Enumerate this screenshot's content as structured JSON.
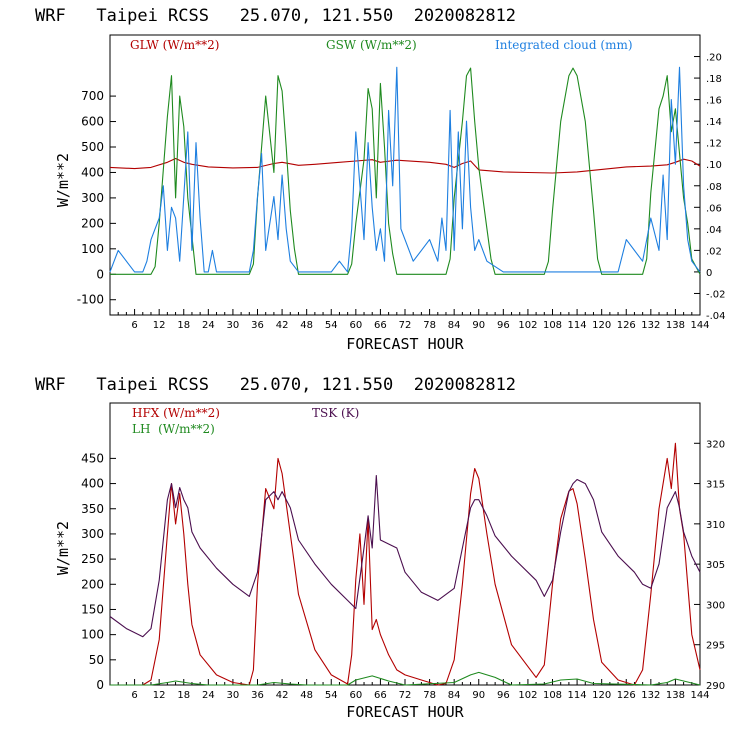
{
  "chart_data": [
    {
      "type": "line",
      "title": "WRF   Taipei RCSS   25.070, 121.550  2020082812",
      "xlabel": "FORECAST HOUR",
      "ylabel": "W/m**2",
      "xlim": [
        0,
        144
      ],
      "ylim": [
        -160,
        940
      ],
      "y2lim": [
        -0.04,
        0.22
      ],
      "xticks": [
        "6",
        "12",
        "18",
        "24",
        "30",
        "36",
        "42",
        "48",
        "54",
        "60",
        "66",
        "72",
        "78",
        "84",
        "90",
        "96",
        "102",
        "108",
        "114",
        "120",
        "126",
        "132",
        "138",
        "144"
      ],
      "yticks": [
        "-100",
        "0",
        "100",
        "200",
        "300",
        "400",
        "500",
        "600",
        "700"
      ],
      "y2ticks": [
        "-.04",
        "-.02",
        "0",
        ".02",
        ".04",
        ".06",
        ".08",
        ".10",
        ".12",
        ".14",
        ".16",
        ".18",
        ".20"
      ],
      "legend": [
        {
          "label": "GLW (W/m**2)",
          "color": "#b30000"
        },
        {
          "label": "GSW (W/m**2)",
          "color": "#1f8a1f"
        },
        {
          "label": "Integrated cloud (mm)",
          "color": "#1e7fe0"
        }
      ],
      "series": [
        {
          "name": "GLW (W/m**2)",
          "color": "#b30000",
          "axis": "left",
          "x": [
            0,
            6,
            10,
            14,
            16,
            18,
            20,
            24,
            30,
            36,
            40,
            42,
            46,
            50,
            56,
            60,
            64,
            66,
            70,
            78,
            82,
            84,
            86,
            88,
            90,
            96,
            102,
            108,
            114,
            120,
            126,
            132,
            136,
            138,
            140,
            142,
            144
          ],
          "y": [
            420,
            415,
            420,
            440,
            455,
            440,
            432,
            422,
            418,
            420,
            435,
            440,
            428,
            432,
            440,
            445,
            450,
            440,
            448,
            440,
            432,
            420,
            435,
            445,
            410,
            402,
            400,
            398,
            402,
            412,
            422,
            425,
            430,
            440,
            452,
            445,
            425
          ]
        },
        {
          "name": "GSW (W/m**2)",
          "color": "#1f8a1f",
          "axis": "left",
          "x": [
            0,
            10,
            11,
            12,
            14,
            15,
            16,
            17,
            18,
            19,
            20,
            21,
            22,
            34,
            35,
            36,
            38,
            40,
            41,
            42,
            43,
            44,
            45,
            46,
            58,
            59,
            60,
            62,
            63,
            64,
            65,
            66,
            67,
            68,
            69,
            70,
            82,
            83,
            84,
            86,
            87,
            88,
            89,
            90,
            92,
            93,
            94,
            106,
            107,
            108,
            110,
            112,
            113,
            114,
            116,
            118,
            119,
            120,
            130,
            131,
            132,
            134,
            135,
            136,
            137,
            138,
            140,
            141,
            142,
            144
          ],
          "y": [
            0,
            0,
            30,
            200,
            620,
            780,
            300,
            700,
            580,
            300,
            150,
            0,
            0,
            0,
            40,
            300,
            700,
            400,
            780,
            720,
            500,
            250,
            100,
            0,
            0,
            40,
            200,
            450,
            730,
            650,
            300,
            750,
            500,
            200,
            80,
            0,
            0,
            60,
            300,
            600,
            780,
            810,
            600,
            420,
            180,
            60,
            0,
            0,
            50,
            250,
            600,
            780,
            810,
            780,
            600,
            250,
            60,
            0,
            0,
            60,
            320,
            650,
            700,
            780,
            560,
            650,
            300,
            200,
            60,
            0
          ]
        },
        {
          "name": "Integrated cloud (mm)",
          "color": "#1e7fe0",
          "axis": "right",
          "x": [
            0,
            2,
            4,
            6,
            8,
            9,
            10,
            12,
            13,
            14,
            15,
            16,
            17,
            18,
            19,
            20,
            21,
            22,
            23,
            24,
            25,
            26,
            30,
            34,
            35,
            36,
            37,
            38,
            40,
            41,
            42,
            43,
            44,
            46,
            50,
            54,
            56,
            58,
            59,
            60,
            61,
            62,
            63,
            64,
            65,
            66,
            67,
            68,
            69,
            70,
            71,
            72,
            74,
            76,
            78,
            80,
            81,
            82,
            83,
            84,
            85,
            86,
            87,
            88,
            89,
            90,
            92,
            96,
            100,
            104,
            108,
            110,
            112,
            114,
            116,
            118,
            120,
            124,
            126,
            130,
            132,
            134,
            135,
            136,
            137,
            138,
            139,
            140,
            141,
            142,
            144
          ],
          "y": [
            0,
            0.02,
            0.01,
            0,
            0,
            0.01,
            0.03,
            0.05,
            0.08,
            0.02,
            0.06,
            0.05,
            0.01,
            0.07,
            0.13,
            0.02,
            0.12,
            0.05,
            0,
            0,
            0.02,
            0,
            0,
            0,
            0.02,
            0.07,
            0.11,
            0.02,
            0.07,
            0.03,
            0.09,
            0.04,
            0.01,
            0,
            0,
            0,
            0.01,
            0,
            0.04,
            0.13,
            0.08,
            0.03,
            0.12,
            0.06,
            0.02,
            0.04,
            0.01,
            0.15,
            0.08,
            0.19,
            0.04,
            0.03,
            0.01,
            0.02,
            0.03,
            0.01,
            0.05,
            0.02,
            0.15,
            0.02,
            0.13,
            0.04,
            0.14,
            0.06,
            0.02,
            0.03,
            0.01,
            0,
            0,
            0,
            0,
            0,
            0,
            0,
            0,
            0,
            0,
            0,
            0.03,
            0.01,
            0.05,
            0.02,
            0.09,
            0.03,
            0.16,
            0.1,
            0.19,
            0.08,
            0.03,
            0.01,
            0
          ]
        }
      ]
    },
    {
      "type": "line",
      "title": "WRF   Taipei RCSS   25.070, 121.550  2020082812",
      "xlabel": "FORECAST HOUR",
      "ylabel": "W/m**2",
      "xlim": [
        0,
        144
      ],
      "ylim": [
        0,
        560
      ],
      "y2lim": [
        290,
        325
      ],
      "xticks": [
        "6",
        "12",
        "18",
        "24",
        "30",
        "36",
        "42",
        "48",
        "54",
        "60",
        "66",
        "72",
        "78",
        "84",
        "90",
        "96",
        "102",
        "108",
        "114",
        "120",
        "126",
        "132",
        "138",
        "144"
      ],
      "yticks": [
        "0",
        "50",
        "100",
        "150",
        "200",
        "250",
        "300",
        "350",
        "400",
        "450"
      ],
      "y2ticks": [
        "290",
        "295",
        "300",
        "305",
        "310",
        "315",
        "320"
      ],
      "legend": [
        {
          "label": "HFX (W/m**2)",
          "color": "#b30000"
        },
        {
          "label": "LH  (W/m**2)",
          "color": "#1f8a1f"
        },
        {
          "label": "TSK (K)",
          "color": "#4b0f4f"
        }
      ],
      "series": [
        {
          "name": "HFX (W/m**2)",
          "color": "#b30000",
          "axis": "left",
          "x": [
            0,
            8,
            10,
            12,
            14,
            15,
            16,
            17,
            18,
            19,
            20,
            22,
            26,
            30,
            34,
            35,
            36,
            38,
            40,
            41,
            42,
            44,
            46,
            50,
            54,
            58,
            59,
            60,
            61,
            62,
            63,
            64,
            65,
            66,
            68,
            70,
            72,
            76,
            80,
            82,
            84,
            86,
            88,
            89,
            90,
            92,
            94,
            98,
            104,
            106,
            108,
            110,
            112,
            113,
            114,
            116,
            118,
            120,
            124,
            128,
            130,
            132,
            134,
            136,
            137,
            138,
            139,
            140,
            142,
            144
          ],
          "y": [
            0,
            0,
            10,
            90,
            300,
            400,
            320,
            380,
            300,
            200,
            120,
            60,
            20,
            5,
            0,
            30,
            200,
            390,
            350,
            450,
            420,
            300,
            180,
            70,
            20,
            2,
            60,
            210,
            300,
            160,
            330,
            110,
            130,
            100,
            60,
            30,
            20,
            10,
            0,
            3,
            50,
            200,
            380,
            430,
            410,
            300,
            200,
            80,
            15,
            40,
            200,
            330,
            385,
            390,
            360,
            250,
            130,
            45,
            10,
            0,
            30,
            180,
            350,
            450,
            390,
            480,
            350,
            300,
            100,
            30
          ]
        },
        {
          "name": "LH  (W/m**2)",
          "color": "#1f8a1f",
          "axis": "left",
          "x": [
            0,
            10,
            14,
            16,
            20,
            24,
            36,
            40,
            44,
            48,
            58,
            60,
            64,
            68,
            72,
            84,
            88,
            90,
            94,
            98,
            106,
            110,
            114,
            118,
            132,
            136,
            138,
            140,
            144
          ],
          "y": [
            0,
            0,
            5,
            8,
            3,
            0,
            0,
            5,
            2,
            0,
            0,
            10,
            18,
            8,
            0,
            5,
            20,
            25,
            15,
            0,
            2,
            10,
            12,
            3,
            0,
            5,
            12,
            8,
            0
          ]
        },
        {
          "name": "TSK (K)",
          "color": "#4b0f4f",
          "axis": "right",
          "x": [
            0,
            4,
            8,
            10,
            12,
            14,
            15,
            16,
            17,
            18,
            19,
            20,
            22,
            26,
            30,
            34,
            36,
            38,
            40,
            41,
            42,
            44,
            46,
            50,
            54,
            58,
            60,
            62,
            63,
            64,
            65,
            66,
            68,
            70,
            72,
            76,
            80,
            84,
            86,
            88,
            89,
            90,
            92,
            94,
            98,
            104,
            106,
            108,
            110,
            112,
            113,
            114,
            116,
            118,
            120,
            124,
            128,
            130,
            132,
            134,
            136,
            137,
            138,
            139,
            140,
            142,
            144
          ],
          "y": [
            298.5,
            297,
            296,
            297,
            303,
            313,
            315,
            312,
            314.5,
            313,
            312,
            309,
            307,
            304.5,
            302.5,
            301,
            304,
            313,
            314,
            313,
            314,
            312,
            308,
            305,
            302.5,
            300.5,
            299.5,
            307,
            311,
            307,
            316,
            308,
            307.5,
            307,
            304,
            301.5,
            300.5,
            302,
            307,
            312,
            313,
            313,
            311,
            308.5,
            306,
            303,
            301,
            303,
            309,
            314,
            315,
            315.5,
            315,
            313,
            309,
            306,
            304,
            302.5,
            302,
            305,
            312,
            313,
            314,
            312,
            309,
            306,
            304
          ]
        }
      ]
    }
  ]
}
